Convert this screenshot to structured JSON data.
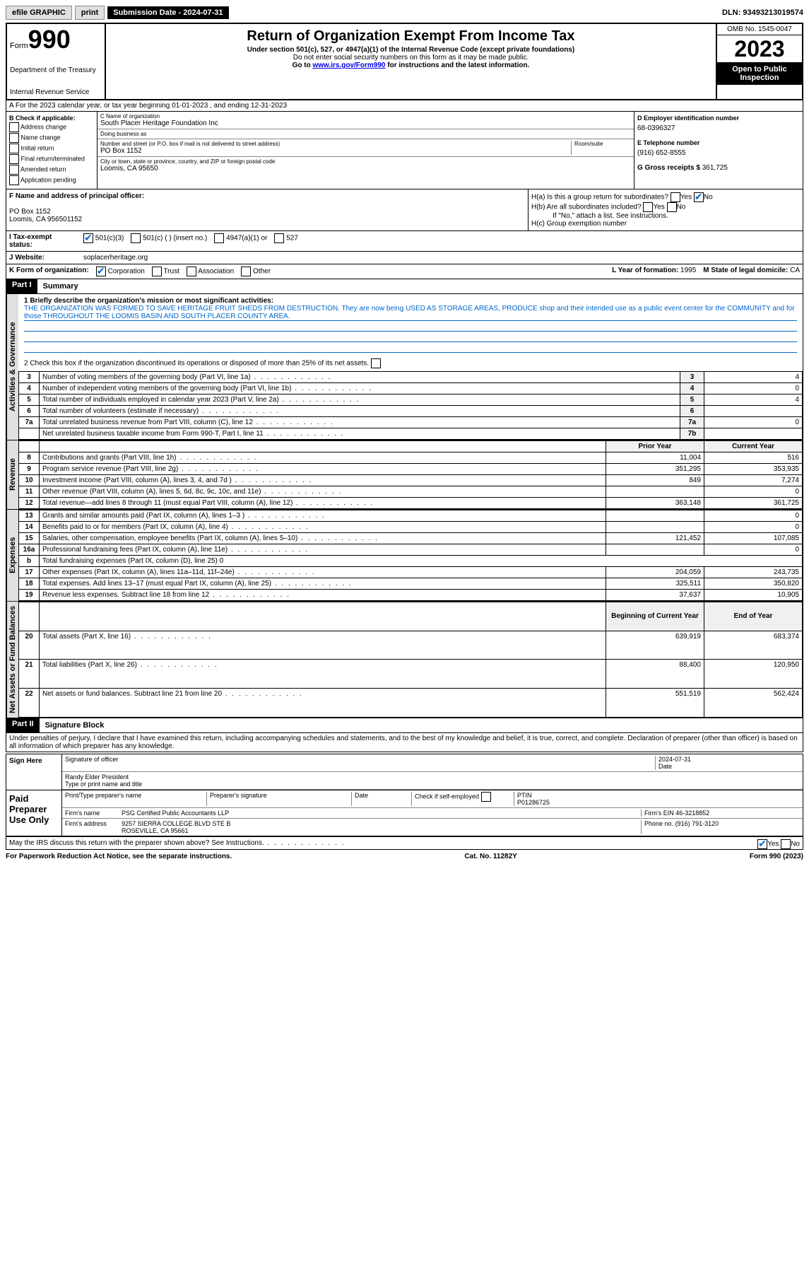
{
  "topbar": {
    "efile": "efile GRAPHIC",
    "print": "print",
    "sub_lbl": "Submission Date - 2024-07-31",
    "dln": "DLN: 93493213019574"
  },
  "header": {
    "form_word": "Form",
    "form_num": "990",
    "title": "Return of Organization Exempt From Income Tax",
    "subtitle": "Under section 501(c), 527, or 4947(a)(1) of the Internal Revenue Code (except private foundations)",
    "ssn_note": "Do not enter social security numbers on this form as it may be made public.",
    "goto": "Go to ",
    "goto_link": "www.irs.gov/Form990",
    "goto_tail": " for instructions and the latest information.",
    "dept": "Department of the Treasury",
    "irs": "Internal Revenue Service",
    "omb": "OMB No. 1545-0047",
    "year": "2023",
    "open": "Open to Public Inspection"
  },
  "rowA": "A For the 2023 calendar year, or tax year beginning 01-01-2023   , and ending 12-31-2023",
  "B": {
    "hdr": "B Check if applicable:",
    "items": [
      "Address change",
      "Name change",
      "Initial return",
      "Final return/terminated",
      "Amended return",
      "Application pending"
    ]
  },
  "C": {
    "name_lbl": "C Name of organization",
    "name": "South Placer Heritage Foundation Inc",
    "dba_lbl": "Doing business as",
    "dba": "",
    "addr_lbl": "Number and street (or P.O. box if mail is not delivered to street address)",
    "room_lbl": "Room/suite",
    "addr": "PO Box 1152",
    "city_lbl": "City or town, state or province, country, and ZIP or foreign postal code",
    "city": "Loomis, CA  95650"
  },
  "D": {
    "ein_lbl": "D Employer identification number",
    "ein": "68-0396327",
    "tel_lbl": "E Telephone number",
    "tel": "(916) 652-8555",
    "gross_lbl": "G Gross receipts $",
    "gross": "361,725"
  },
  "F": {
    "lbl": "F Name and address of principal officer:",
    "addr1": "PO Box 1152",
    "addr2": "Loomis, CA  956501152"
  },
  "H": {
    "a": "H(a)  Is this a group return for subordinates?",
    "b": "H(b)  Are all subordinates included?",
    "b_note": "If \"No,\" attach a list. See instructions.",
    "c": "H(c)  Group exemption number",
    "yes": "Yes",
    "no": "No"
  },
  "I": {
    "lbl": "I  Tax-exempt status:",
    "opt1": "501(c)(3)",
    "opt2": "501(c) (  ) (insert no.)",
    "opt3": "4947(a)(1) or",
    "opt4": "527"
  },
  "J": {
    "lbl": "J  Website:",
    "val": "soplacerheritage.org"
  },
  "K": {
    "lbl": "K Form of organization:",
    "corp": "Corporation",
    "trust": "Trust",
    "assoc": "Association",
    "other": "Other"
  },
  "L": {
    "lbl": "L Year of formation:",
    "val": "1995"
  },
  "M": {
    "lbl": "M State of legal domicile:",
    "val": "CA"
  },
  "part1": {
    "hdr": "Part I",
    "title": "Summary"
  },
  "mission": {
    "lbl": "1  Briefly describe the organization's mission or most significant activities:",
    "text": "THE ORGANIZATION WAS FORMED TO SAVE HERITAGE FRUIT SHEDS FROM DESTRUCTION. They are now being USED AS STORAGE AREAS, PRODUCE shop and their intended use as a public event center for the COMMUNITY and for those THROUGHOUT THE LOOMIS BASIN AND SOUTH PLACER COUNTY AREA."
  },
  "line2": "2   Check this box      if the organization discontinued its operations or disposed of more than 25% of its net assets.",
  "governance_rows": [
    {
      "n": "3",
      "t": "Number of voting members of the governing body (Part VI, line 1a)",
      "box": "3",
      "v": "4"
    },
    {
      "n": "4",
      "t": "Number of independent voting members of the governing body (Part VI, line 1b)",
      "box": "4",
      "v": "0"
    },
    {
      "n": "5",
      "t": "Total number of individuals employed in calendar year 2023 (Part V, line 2a)",
      "box": "5",
      "v": "4"
    },
    {
      "n": "6",
      "t": "Total number of volunteers (estimate if necessary)",
      "box": "6",
      "v": ""
    },
    {
      "n": "7a",
      "t": "Total unrelated business revenue from Part VIII, column (C), line 12",
      "box": "7a",
      "v": "0"
    },
    {
      "n": "",
      "t": "Net unrelated business taxable income from Form 990-T, Part I, line 11",
      "box": "7b",
      "v": ""
    }
  ],
  "col_hdrs": {
    "prior": "Prior Year",
    "curr": "Current Year"
  },
  "revenue_rows": [
    {
      "n": "8",
      "t": "Contributions and grants (Part VIII, line 1h)",
      "p": "11,004",
      "c": "516"
    },
    {
      "n": "9",
      "t": "Program service revenue (Part VIII, line 2g)",
      "p": "351,295",
      "c": "353,935"
    },
    {
      "n": "10",
      "t": "Investment income (Part VIII, column (A), lines 3, 4, and 7d )",
      "p": "849",
      "c": "7,274"
    },
    {
      "n": "11",
      "t": "Other revenue (Part VIII, column (A), lines 5, 6d, 8c, 9c, 10c, and 11e)",
      "p": "",
      "c": "0"
    },
    {
      "n": "12",
      "t": "Total revenue—add lines 8 through 11 (must equal Part VIII, column (A), line 12)",
      "p": "363,148",
      "c": "361,725"
    }
  ],
  "expense_rows": [
    {
      "n": "13",
      "t": "Grants and similar amounts paid (Part IX, column (A), lines 1–3 )",
      "p": "",
      "c": "0"
    },
    {
      "n": "14",
      "t": "Benefits paid to or for members (Part IX, column (A), line 4)",
      "p": "",
      "c": "0"
    },
    {
      "n": "15",
      "t": "Salaries, other compensation, employee benefits (Part IX, column (A), lines 5–10)",
      "p": "121,452",
      "c": "107,085"
    },
    {
      "n": "16a",
      "t": "Professional fundraising fees (Part IX, column (A), line 11e)",
      "p": "",
      "c": "0"
    },
    {
      "n": "b",
      "t": "Total fundraising expenses (Part IX, column (D), line 25) 0",
      "p": null,
      "c": null
    },
    {
      "n": "17",
      "t": "Other expenses (Part IX, column (A), lines 11a–11d, 11f–24e)",
      "p": "204,059",
      "c": "243,735"
    },
    {
      "n": "18",
      "t": "Total expenses. Add lines 13–17 (must equal Part IX, column (A), line 25)",
      "p": "325,511",
      "c": "350,820"
    },
    {
      "n": "19",
      "t": "Revenue less expenses. Subtract line 18 from line 12",
      "p": "37,637",
      "c": "10,905"
    }
  ],
  "col_hdrs2": {
    "beg": "Beginning of Current Year",
    "end": "End of Year"
  },
  "netassets_rows": [
    {
      "n": "20",
      "t": "Total assets (Part X, line 16)",
      "p": "639,919",
      "c": "683,374"
    },
    {
      "n": "21",
      "t": "Total liabilities (Part X, line 26)",
      "p": "88,400",
      "c": "120,950"
    },
    {
      "n": "22",
      "t": "Net assets or fund balances. Subtract line 21 from line 20",
      "p": "551,519",
      "c": "562,424"
    }
  ],
  "vtabs": {
    "gov": "Activities & Governance",
    "rev": "Revenue",
    "exp": "Expenses",
    "net": "Net Assets or Fund Balances"
  },
  "part2": {
    "hdr": "Part II",
    "title": "Signature Block"
  },
  "perjury": "Under penalties of perjury, I declare that I have examined this return, including accompanying schedules and statements, and to the best of my knowledge and belief, it is true, correct, and complete. Declaration of preparer (other than officer) is based on all information of which preparer has any knowledge.",
  "sign": {
    "here": "Sign Here",
    "sig_lbl": "Signature of officer",
    "date_lbl": "Date",
    "date": "2024-07-31",
    "name": "Randy Elder President",
    "name_lbl": "Type or print name and title"
  },
  "paid": {
    "lbl": "Paid Preparer Use Only",
    "prep_name_lbl": "Print/Type preparer's name",
    "prep_sig_lbl": "Preparer's signature",
    "date_lbl": "Date",
    "check_lbl": "Check       if self-employed",
    "ptin_lbl": "PTIN",
    "ptin": "P01286725",
    "firm_name_lbl": "Firm's name",
    "firm_name": "PSG Certified Public Accountants LLP",
    "firm_ein_lbl": "Firm's EIN",
    "firm_ein": "46-3218852",
    "firm_addr_lbl": "Firm's address",
    "firm_addr": "9257 SIERRA COLLEGE BLVD STE B",
    "firm_city": "ROSEVILLE, CA  95661",
    "phone_lbl": "Phone no.",
    "phone": "(916) 791-3120"
  },
  "discuss": "May the IRS discuss this return with the preparer shown above? See Instructions.",
  "footer": {
    "l": "For Paperwork Reduction Act Notice, see the separate instructions.",
    "m": "Cat. No. 11282Y",
    "r": "Form 990 (2023)"
  }
}
